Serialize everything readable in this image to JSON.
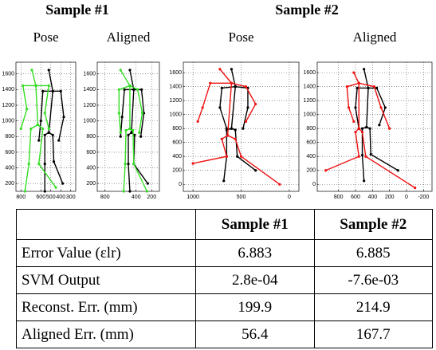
{
  "headers": [
    "Sample #1",
    "Sample #2"
  ],
  "chart_data": [
    {
      "type": "line",
      "title": "Pose",
      "xlim": [
        850,
        250
      ],
      "ylim": [
        100,
        1750
      ],
      "xticks": [
        800,
        600,
        500,
        400,
        300
      ],
      "yticks": [
        200,
        400,
        600,
        800,
        1000,
        1200,
        1400,
        1600
      ],
      "grid": true,
      "series": [
        {
          "color": "#000000",
          "x": [
            520,
            480,
            520,
            560,
            560,
            560,
            null,
            480,
            580,
            600,
            620,
            null,
            480,
            400,
            370,
            420,
            null,
            520,
            480,
            470,
            380
          ],
          "y": [
            1650,
            1380,
            850,
            820,
            450,
            100,
            null,
            1380,
            1380,
            1000,
            750,
            null,
            1380,
            1380,
            1050,
            750,
            null,
            850,
            820,
            480,
            200
          ]
        },
        {
          "color": "#33dd22",
          "x": [
            690,
            650,
            630,
            700,
            720,
            760,
            null,
            650,
            780,
            740,
            800,
            null,
            650,
            520,
            560,
            520,
            null,
            630,
            580,
            620,
            450
          ],
          "y": [
            1650,
            1450,
            950,
            900,
            450,
            100,
            null,
            1450,
            1450,
            1150,
            900,
            null,
            1450,
            1450,
            1100,
            900,
            null,
            950,
            900,
            450,
            150
          ]
        }
      ]
    },
    {
      "type": "line",
      "title": "Aligned",
      "xlim": [
        900,
        100
      ],
      "ylim": [
        100,
        1750
      ],
      "xticks": [
        800,
        400,
        200
      ],
      "yticks": [
        200,
        400,
        600,
        800,
        1000,
        1200,
        1400,
        1600
      ],
      "grid": true,
      "series": [
        {
          "color": "#000000",
          "x": [
            480,
            430,
            460,
            500,
            500,
            480,
            null,
            430,
            550,
            580,
            600,
            null,
            430,
            330,
            300,
            340,
            null,
            460,
            420,
            430,
            250
          ],
          "y": [
            1650,
            1400,
            850,
            820,
            450,
            100,
            null,
            1400,
            1400,
            1050,
            800,
            null,
            1400,
            1400,
            1100,
            800,
            null,
            850,
            820,
            450,
            200
          ]
        },
        {
          "color": "#33dd22",
          "x": [
            600,
            480,
            480,
            530,
            540,
            560,
            null,
            480,
            620,
            620,
            600,
            null,
            480,
            380,
            320,
            360,
            null,
            480,
            440,
            430,
            260
          ],
          "y": [
            1650,
            1450,
            900,
            880,
            450,
            100,
            null,
            1450,
            1400,
            1100,
            850,
            null,
            1450,
            1400,
            1100,
            850,
            null,
            900,
            880,
            450,
            100
          ]
        }
      ]
    },
    {
      "type": "line",
      "title": "Pose",
      "xlim": [
        1100,
        -100
      ],
      "ylim": [
        -100,
        1750
      ],
      "xticks": [
        1000,
        500,
        0
      ],
      "yticks": [
        0,
        200,
        400,
        600,
        800,
        1000,
        1200,
        1400,
        1600
      ],
      "grid": true,
      "series": [
        {
          "color": "#000000",
          "x": [
            600,
            560,
            600,
            650,
            650,
            680,
            null,
            560,
            700,
            720,
            650,
            null,
            560,
            430,
            430,
            480,
            null,
            600,
            560,
            540,
            350
          ],
          "y": [
            1650,
            1400,
            800,
            780,
            400,
            50,
            null,
            1400,
            1380,
            1100,
            800,
            null,
            1400,
            1380,
            1100,
            800,
            null,
            800,
            780,
            400,
            200
          ]
        },
        {
          "color": "#ee1111",
          "x": [
            720,
            600,
            640,
            700,
            650,
            1000,
            null,
            600,
            820,
            900,
            950,
            null,
            600,
            450,
            350,
            450,
            null,
            640,
            560,
            500,
            100
          ],
          "y": [
            1650,
            1450,
            700,
            650,
            400,
            300,
            null,
            1450,
            1450,
            1100,
            900,
            null,
            1450,
            1400,
            1150,
            900,
            null,
            700,
            650,
            400,
            0
          ]
        }
      ]
    },
    {
      "type": "line",
      "title": "Aligned",
      "xlim": [
        1050,
        -300
      ],
      "ylim": [
        -100,
        1750
      ],
      "xticks": [
        800,
        600,
        400,
        200,
        0,
        -200
      ],
      "yticks": [
        0,
        200,
        400,
        600,
        800,
        1000,
        1200,
        1400,
        1600
      ],
      "grid": true,
      "series": [
        {
          "color": "#000000",
          "x": [
            500,
            450,
            470,
            520,
            520,
            500,
            null,
            450,
            580,
            600,
            560,
            null,
            450,
            350,
            250,
            320,
            null,
            470,
            430,
            420,
            100
          ],
          "y": [
            1650,
            1380,
            820,
            800,
            420,
            50,
            null,
            1380,
            1380,
            1100,
            800,
            null,
            1380,
            1380,
            1100,
            850,
            null,
            820,
            800,
            430,
            200
          ]
        },
        {
          "color": "#ee1111",
          "x": [
            620,
            560,
            560,
            600,
            560,
            950,
            null,
            560,
            700,
            680,
            620,
            null,
            560,
            380,
            300,
            200,
            null,
            560,
            520,
            480,
            -100
          ],
          "y": [
            1600,
            1450,
            800,
            750,
            400,
            200,
            null,
            1450,
            1400,
            1100,
            900,
            null,
            1450,
            1400,
            1100,
            800,
            null,
            800,
            750,
            400,
            -50
          ]
        }
      ]
    }
  ],
  "table": {
    "header": [
      "Sample #1",
      "Sample #2"
    ],
    "rows": [
      [
        "Error Value (εlr)",
        6.883,
        6.885
      ],
      [
        "SVM Output",
        "2.8e-04",
        "-7.6e-03"
      ],
      [
        "Reconst. Err. (mm)",
        199.9,
        214.9
      ],
      [
        "Aligned Err. (mm)",
        56.4,
        167.7
      ]
    ]
  }
}
